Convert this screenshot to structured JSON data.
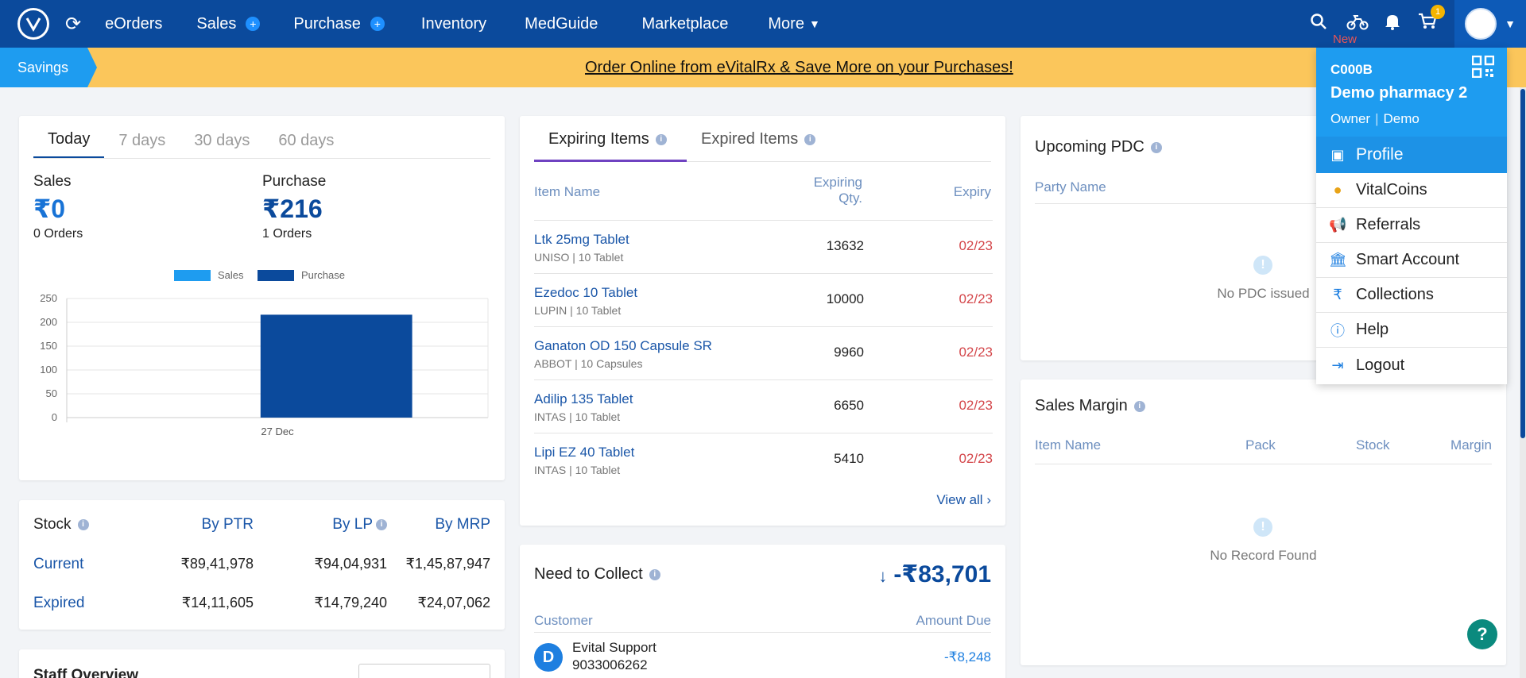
{
  "nav": {
    "items": [
      {
        "label": "eOrders"
      },
      {
        "label": "Sales"
      },
      {
        "label": "Purchase"
      },
      {
        "label": "Inventory"
      },
      {
        "label": "MedGuide"
      },
      {
        "label": "Marketplace"
      },
      {
        "label": "More"
      }
    ],
    "new_label": "New",
    "cart_count": "1"
  },
  "banner": {
    "savings_label": "Savings",
    "text": "Order Online from eVitalRx & Save More on your Purchases!"
  },
  "sales_card": {
    "tabs": [
      "Today",
      "7 days",
      "30 days",
      "60 days"
    ],
    "sales_label": "Sales",
    "sales_value": "₹0",
    "sales_orders": "0 Orders",
    "purchase_label": "Purchase",
    "purchase_value": "₹216",
    "purchase_orders": "1 Orders"
  },
  "chart_data": {
    "type": "bar",
    "categories": [
      "27 Dec"
    ],
    "series": [
      {
        "name": "Sales",
        "values": [
          0
        ],
        "color": "#1e9cf0"
      },
      {
        "name": "Purchase",
        "values": [
          216
        ],
        "color": "#0b4a9c"
      }
    ],
    "yticks": [
      0,
      50,
      100,
      150,
      200,
      250
    ],
    "ylim": [
      0,
      250
    ],
    "legend_position": "top"
  },
  "stock_card": {
    "title": "Stock",
    "cols": [
      "By PTR",
      "By LP",
      "By MRP"
    ],
    "rows": [
      {
        "label": "Current",
        "values": [
          "₹89,41,978",
          "₹94,04,931",
          "₹1,45,87,947"
        ]
      },
      {
        "label": "Expired",
        "values": [
          "₹14,11,605",
          "₹14,79,240",
          "₹24,07,062"
        ]
      }
    ],
    "next_title": "Staff Overview"
  },
  "expiring_card": {
    "tabs": [
      "Expiring Items",
      "Expired Items"
    ],
    "headers": {
      "name": "Item Name",
      "qty_line1": "Expiring",
      "qty_line2": "Qty.",
      "expiry": "Expiry"
    },
    "items": [
      {
        "name": "Ltk 25mg Tablet",
        "mfr": "UNISO",
        "pack": "10 Tablet",
        "qty": "13632",
        "expiry": "02/23"
      },
      {
        "name": "Ezedoc 10 Tablet",
        "mfr": "LUPIN",
        "pack": "10 Tablet",
        "qty": "10000",
        "expiry": "02/23"
      },
      {
        "name": "Ganaton OD 150 Capsule SR",
        "mfr": "ABBOT",
        "pack": "10 Capsules",
        "qty": "9960",
        "expiry": "02/23"
      },
      {
        "name": "Adilip 135 Tablet",
        "mfr": "INTAS",
        "pack": "10 Tablet",
        "qty": "6650",
        "expiry": "02/23"
      },
      {
        "name": "Lipi EZ 40 Tablet",
        "mfr": "INTAS",
        "pack": "10 Tablet",
        "qty": "5410",
        "expiry": "02/23"
      }
    ],
    "view_all": "View all"
  },
  "collect_card": {
    "title": "Need to Collect",
    "amount": "-₹83,701",
    "headers": {
      "customer": "Customer",
      "amount": "Amount Due"
    },
    "rows": [
      {
        "initial": "D",
        "name": "Evital Support",
        "phone": "9033006262",
        "amount": "-₹8,248"
      }
    ]
  },
  "pdc_card": {
    "title": "Upcoming PDC",
    "col": "Party Name",
    "empty": "No PDC issued"
  },
  "margin_card": {
    "title": "Sales Margin",
    "cols": [
      "Item Name",
      "Pack",
      "Stock",
      "Margin"
    ],
    "empty": "No Record Found"
  },
  "dropdown": {
    "code": "C000B",
    "store": "Demo pharmacy 2",
    "role": "Owner",
    "user": "Demo",
    "items": [
      "Profile",
      "VitalCoins",
      "Referrals",
      "Smart Account",
      "Collections",
      "Help",
      "Logout"
    ]
  },
  "help_label": "?"
}
